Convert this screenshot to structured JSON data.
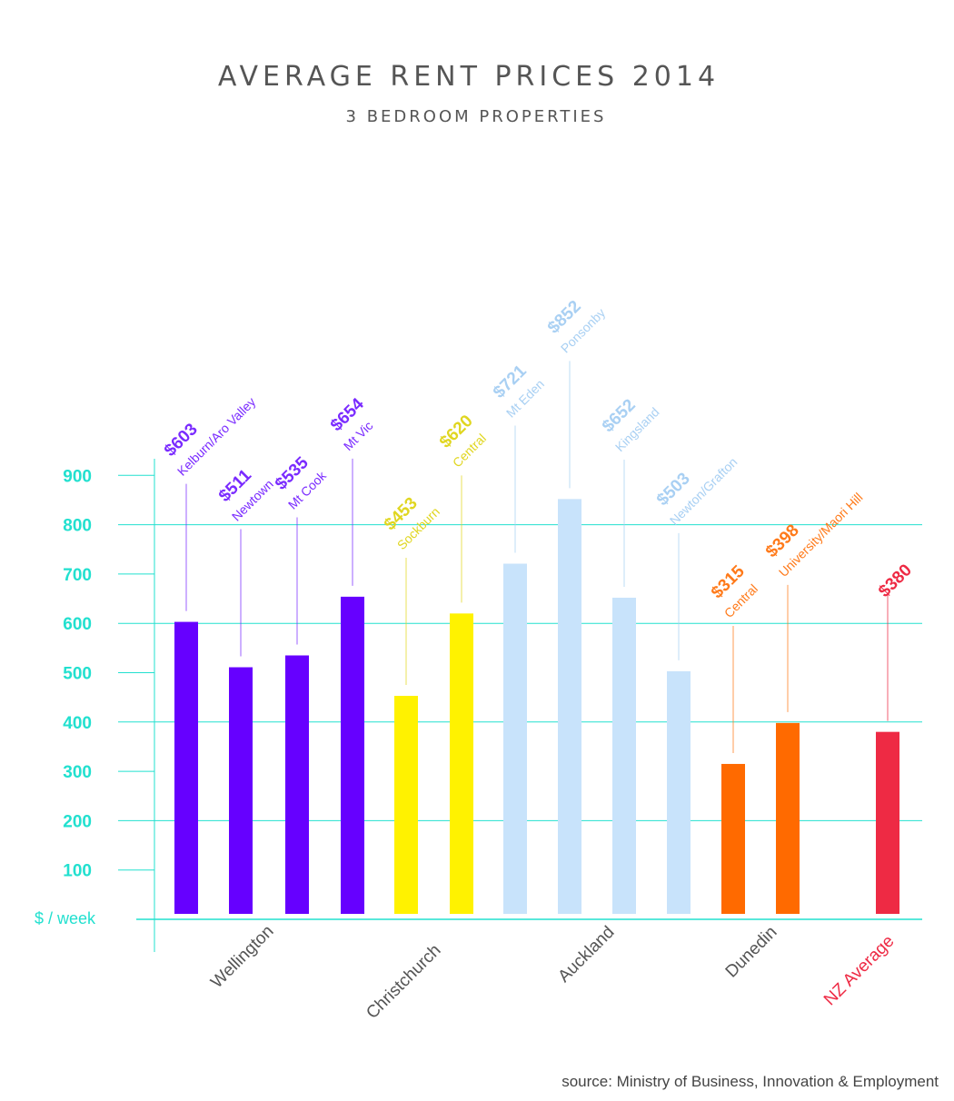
{
  "chart_data": {
    "type": "bar",
    "title": "AVERAGE RENT PRICES 2014",
    "subtitle": "3 BEDROOM PROPERTIES",
    "ylabel": "$ / week",
    "ylim": [
      0,
      900
    ],
    "yticks": [
      "100",
      "200",
      "300",
      "400",
      "500",
      "600",
      "700",
      "800",
      "900"
    ],
    "grid": true,
    "source": "source: Ministry of Business, Innovation & Employment",
    "groups": [
      {
        "name": "Wellington",
        "color": "#6600ff",
        "label_color": "#7a2bff",
        "city_color": "#555555",
        "bars": [
          {
            "label": "Kelburn/Aro Valley",
            "price": "$603",
            "value": 603
          },
          {
            "label": "Newtown",
            "price": "$511",
            "value": 511
          },
          {
            "label": "Mt Cook",
            "price": "$535",
            "value": 535
          },
          {
            "label": "Mt Vic",
            "price": "$654",
            "value": 654
          }
        ]
      },
      {
        "name": "Christchurch",
        "color": "#fff200",
        "label_color": "#e0d620",
        "city_color": "#555555",
        "bars": [
          {
            "label": "Sockburn",
            "price": "$453",
            "value": 453
          },
          {
            "label": "Central",
            "price": "$620",
            "value": 620
          }
        ]
      },
      {
        "name": "Auckland",
        "color": "#c8e3fb",
        "label_color": "#a9d0f3",
        "city_color": "#555555",
        "bars": [
          {
            "label": "Mt Eden",
            "price": "$721",
            "value": 721
          },
          {
            "label": "Ponsonby",
            "price": "$852",
            "value": 852
          },
          {
            "label": "Kingsland",
            "price": "$652",
            "value": 652
          },
          {
            "label": "Newton/Grafton",
            "price": "$503",
            "value": 503
          }
        ]
      },
      {
        "name": "Dunedin",
        "color": "#ff6a00",
        "label_color": "#ff7a1a",
        "city_color": "#555555",
        "bars": [
          {
            "label": "Central",
            "price": "$315",
            "value": 315
          },
          {
            "label": "University/Maori Hill",
            "price": "$398",
            "value": 398
          }
        ]
      },
      {
        "name": "NZ Average",
        "color": "#ee2a44",
        "label_color": "#ee2a44",
        "city_color": "#ee2a44",
        "bars": [
          {
            "label": "",
            "price": "$380",
            "value": 380
          }
        ]
      }
    ]
  }
}
